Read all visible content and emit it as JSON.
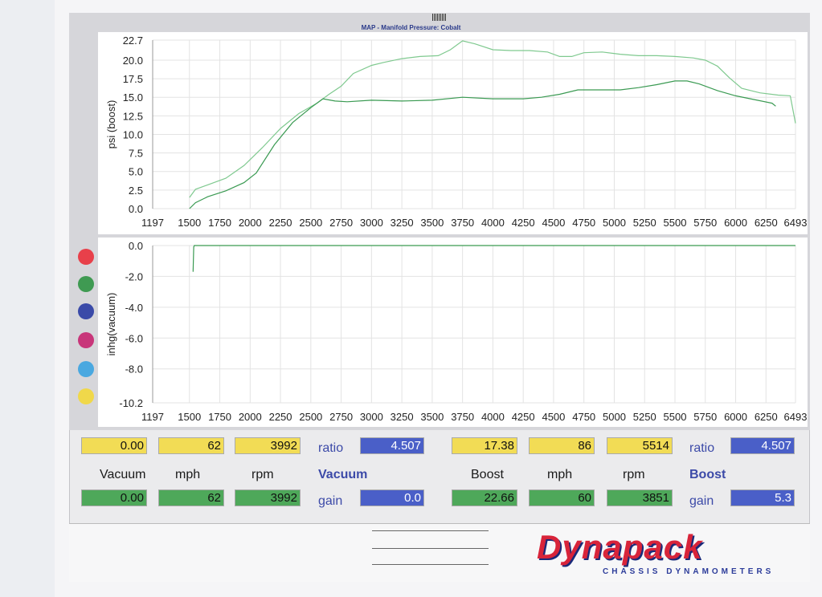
{
  "chart_title": "MAP - Manifold Pressure: Cobalt",
  "chart_data": [
    {
      "type": "line",
      "ylabel": "psi (boost)",
      "xlabel": "",
      "xlim": [
        1197,
        6493
      ],
      "ylim": [
        0,
        22.7
      ],
      "x_ticks": [
        "1197",
        "1500",
        "1750",
        "2000",
        "2250",
        "2500",
        "2750",
        "3000",
        "3250",
        "3500",
        "3750",
        "4000",
        "4250",
        "4500",
        "4750",
        "5000",
        "5250",
        "5500",
        "5750",
        "6000",
        "6250",
        "6493"
      ],
      "y_ticks": [
        "0.0",
        "2.5",
        "5.0",
        "7.5",
        "10.0",
        "12.5",
        "15.0",
        "17.5",
        "20.0",
        "22.7"
      ],
      "series": [
        {
          "color": "#7fc98f",
          "x": [
            1500,
            1550,
            1650,
            1800,
            1950,
            2100,
            2250,
            2400,
            2550,
            2650,
            2750,
            2850,
            3000,
            3100,
            3250,
            3400,
            3550,
            3650,
            3750,
            3850,
            4000,
            4150,
            4300,
            4450,
            4550,
            4650,
            4750,
            4900,
            5050,
            5200,
            5350,
            5500,
            5650,
            5750,
            5850,
            5950,
            6050,
            6200,
            6350,
            6450,
            6493
          ],
          "y": [
            1.5,
            2.6,
            3.2,
            4.1,
            5.8,
            8.2,
            10.8,
            12.8,
            14.2,
            15.4,
            16.5,
            18.2,
            19.3,
            19.7,
            20.2,
            20.5,
            20.6,
            21.4,
            22.6,
            22.2,
            21.4,
            21.3,
            21.3,
            21.1,
            20.5,
            20.5,
            21.0,
            21.1,
            20.8,
            20.6,
            20.6,
            20.5,
            20.3,
            20.0,
            19.2,
            17.6,
            16.2,
            15.6,
            15.3,
            15.2,
            11.5
          ]
        },
        {
          "color": "#3a9a52",
          "x": [
            1500,
            1550,
            1650,
            1800,
            1950,
            2050,
            2200,
            2350,
            2500,
            2600,
            2700,
            2800,
            3000,
            3250,
            3500,
            3750,
            4000,
            4250,
            4400,
            4550,
            4700,
            4900,
            5050,
            5200,
            5350,
            5500,
            5600,
            5700,
            5850,
            6000,
            6150,
            6300,
            6330
          ],
          "y": [
            0.0,
            0.8,
            1.6,
            2.4,
            3.5,
            4.8,
            8.6,
            11.6,
            13.6,
            14.8,
            14.5,
            14.4,
            14.6,
            14.5,
            14.6,
            15.0,
            14.8,
            14.8,
            15.0,
            15.4,
            16.0,
            16.0,
            16.0,
            16.3,
            16.7,
            17.2,
            17.2,
            16.8,
            15.9,
            15.2,
            14.7,
            14.2,
            13.8
          ]
        }
      ]
    },
    {
      "type": "line",
      "ylabel": "inhg(vacuum)",
      "xlabel": "",
      "xlim": [
        1197,
        6493
      ],
      "ylim": [
        -10.2,
        0.0
      ],
      "x_ticks": [
        "1197",
        "1500",
        "1750",
        "2000",
        "2250",
        "2500",
        "2750",
        "3000",
        "3250",
        "3500",
        "3750",
        "4000",
        "4250",
        "4500",
        "4750",
        "5000",
        "5250",
        "5500",
        "5750",
        "6000",
        "6250",
        "6493"
      ],
      "y_ticks": [
        "0.0",
        "-2.0",
        "-4.0",
        "-6.0",
        "-8.0",
        "-10.2"
      ],
      "series": [
        {
          "color": "#3a9a52",
          "x": [
            1530,
            1535,
            1540,
            1560,
            6493
          ],
          "y": [
            -1.7,
            -0.1,
            0.0,
            0.0,
            0.0
          ]
        }
      ]
    }
  ],
  "dots": [
    "#e8404a",
    "#3f9a52",
    "#3a4aa8",
    "#c8367a",
    "#4aa8e0",
    "#f0d84a"
  ],
  "vacuum": {
    "top": {
      "vacuum": "0.00",
      "mph": "62",
      "rpm": "3992"
    },
    "labels": {
      "vacuum": "Vacuum",
      "mph": "mph",
      "rpm": "rpm"
    },
    "bottom": {
      "vacuum": "0.00",
      "mph": "62",
      "rpm": "3992"
    },
    "ratio_label": "ratio",
    "ratio": "4.507",
    "section": "Vacuum",
    "gain_label": "gain",
    "gain": "0.0"
  },
  "boost": {
    "top": {
      "boost": "17.38",
      "mph": "86",
      "rpm": "5514"
    },
    "labels": {
      "boost": "Boost",
      "mph": "mph",
      "rpm": "rpm"
    },
    "bottom": {
      "boost": "22.66",
      "mph": "60",
      "rpm": "3851"
    },
    "ratio_label": "ratio",
    "ratio": "4.507",
    "section": "Boost",
    "gain_label": "gain",
    "gain": "5.3"
  },
  "logo": {
    "brand": "Dynapack",
    "tagline": "CHASSIS   DYNAMOMETERS"
  }
}
